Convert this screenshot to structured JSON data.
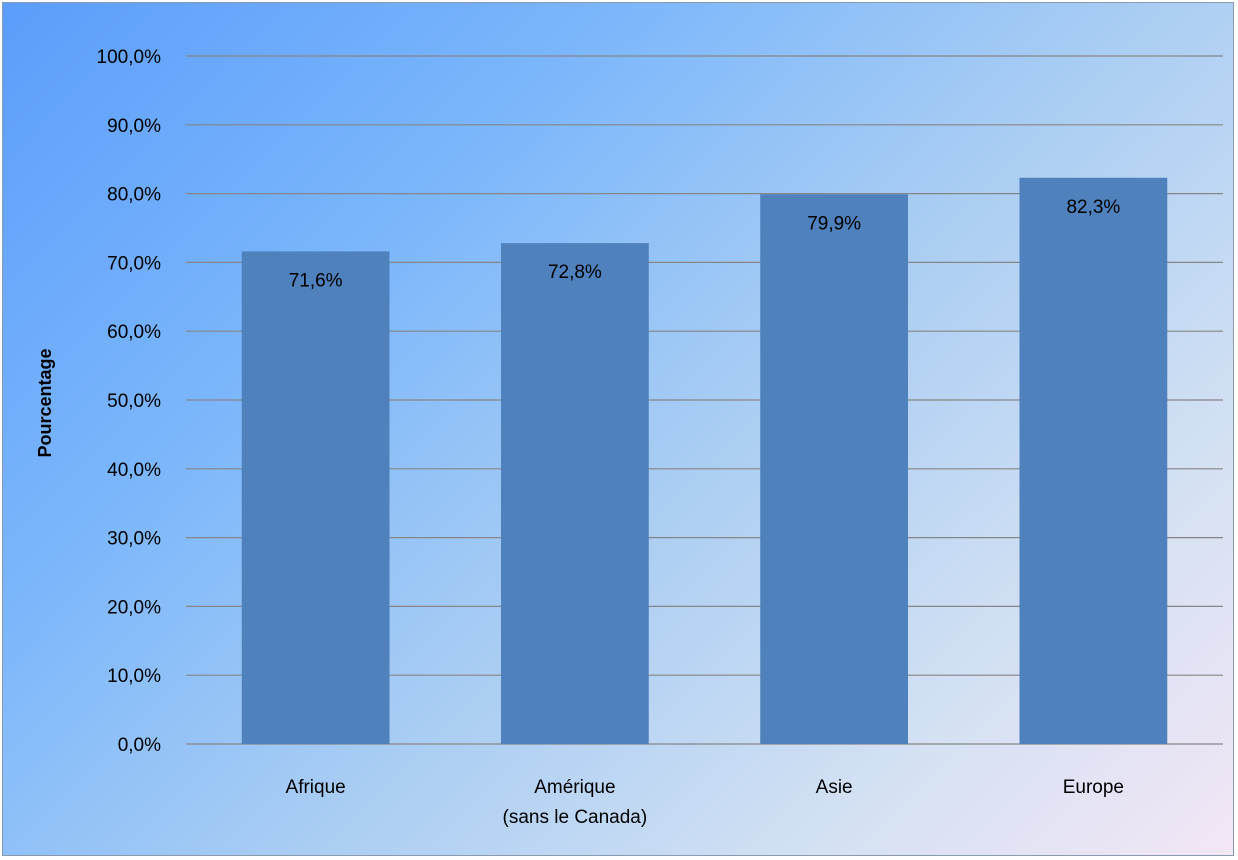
{
  "chart_data": {
    "type": "bar",
    "title": "",
    "xlabel": "",
    "ylabel": "Pourcentage",
    "categories": [
      [
        "Afrique"
      ],
      [
        "Amérique",
        "(sans le Canada)"
      ],
      [
        "Asie"
      ],
      [
        "Europe"
      ]
    ],
    "values": [
      71.6,
      72.8,
      79.9,
      82.3
    ],
    "value_labels": [
      "71,6%",
      "72,8%",
      "79,9%",
      "82,3%"
    ],
    "ylim": [
      0,
      100
    ],
    "yticks": [
      0,
      10,
      20,
      30,
      40,
      50,
      60,
      70,
      80,
      90,
      100
    ],
    "ytick_labels": [
      "0,0%",
      "10,0%",
      "20,0%",
      "30,0%",
      "40,0%",
      "50,0%",
      "60,0%",
      "70,0%",
      "80,0%",
      "90,0%",
      "100,0%"
    ],
    "grid": true,
    "legend": "none",
    "colors": {
      "bar": "#4f81bd",
      "grid": "#868686"
    }
  }
}
